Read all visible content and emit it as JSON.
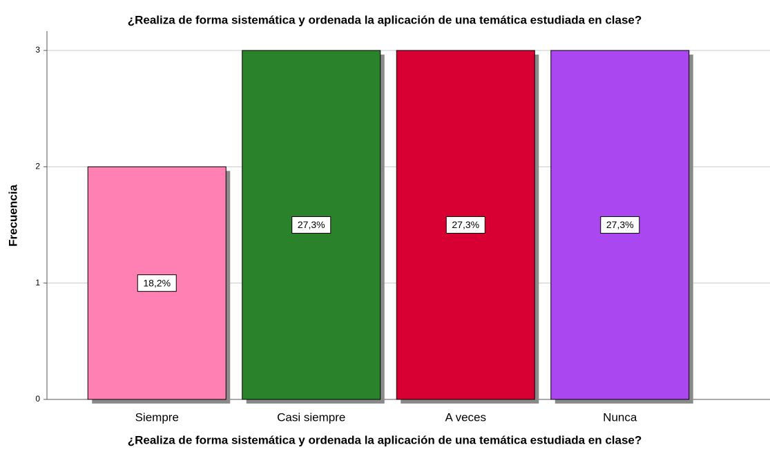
{
  "chart_data": {
    "type": "bar",
    "title": "¿Realiza de forma sistemática y ordenada la aplicación de una temática estudiada en clase?",
    "x_label": "¿Realiza de forma sistemática y ordenada la aplicación de una temática estudiada en clase?",
    "y_label": "Frecuencia",
    "categories": [
      "Siempre",
      "Casi siempre",
      "A veces",
      "Nunca"
    ],
    "values": [
      2,
      3,
      3,
      3
    ],
    "colors": [
      "#ff80b2",
      "#2a832a",
      "#d80032",
      "#aa47f1"
    ],
    "percentages": [
      18.2,
      27.3,
      27.3,
      27.3
    ],
    "percentage_labels": [
      "18,2%",
      "27,3%",
      "27,3%",
      "27,3%"
    ],
    "ylim": [
      0,
      3
    ],
    "yticks": [
      0,
      1,
      2,
      3
    ],
    "grid": true
  }
}
